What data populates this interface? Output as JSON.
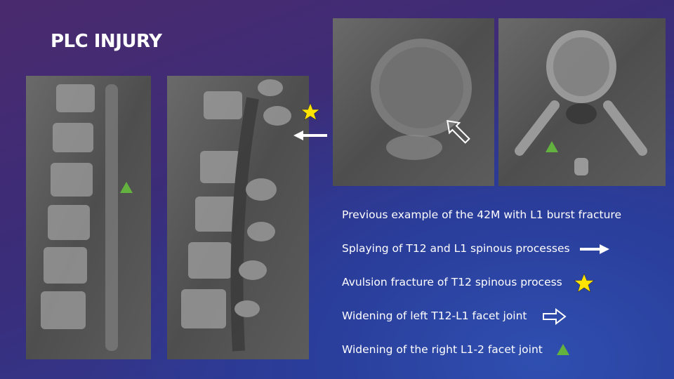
{
  "header": {
    "title": "PLC INJURY"
  },
  "bullets": [
    "Previous example of the 42M with L1 burst fracture",
    "Splaying of T12 and L1 spinous processes",
    "Avulsion fracture of T12 spinous process",
    "Widening of left T12-L1 facet joint",
    "Widening of the right L1-2 facet joint"
  ]
}
